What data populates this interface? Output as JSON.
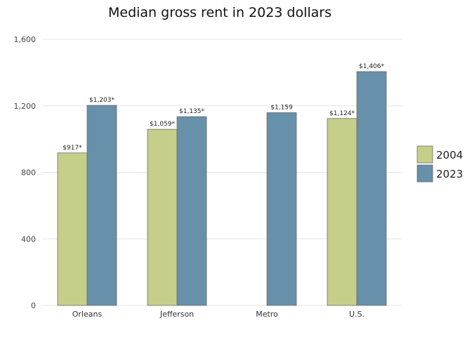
{
  "chart_data": {
    "type": "bar",
    "title": "Median gross rent in 2023 dollars",
    "xlabel": "",
    "ylabel": "",
    "categories": [
      "Orleans",
      "Jefferson",
      "Metro",
      "U.S."
    ],
    "series": [
      {
        "name": "2004",
        "values": [
          917,
          1059,
          0,
          1124
        ],
        "labels": [
          "$917*",
          "$1,059*",
          "",
          "$1,124*"
        ],
        "color": "#c5cf8a"
      },
      {
        "name": "2023",
        "values": [
          1203,
          1135,
          1159,
          1406
        ],
        "labels": [
          "$1,203*",
          "$1,135*",
          "$1,159",
          "$1,406*"
        ],
        "color": "#6790aa"
      }
    ],
    "ylim": [
      0,
      1600
    ],
    "yticks": [
      0,
      400,
      800,
      1200,
      1600
    ],
    "ytick_labels": [
      "0",
      "400",
      "800",
      "1,200",
      "1,600"
    ],
    "grid": true,
    "legend_position": "right"
  }
}
